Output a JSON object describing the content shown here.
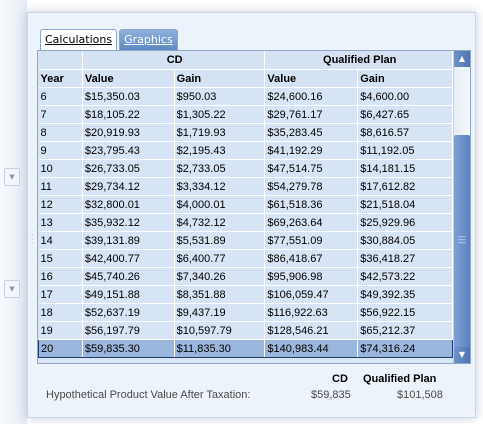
{
  "tabs": [
    {
      "label": "Calculations",
      "active": true
    },
    {
      "label": "Graphics",
      "active": false
    }
  ],
  "grid": {
    "groups": [
      "CD",
      "Qualified Plan"
    ],
    "columns": [
      "Year",
      "Value",
      "Gain",
      "Value",
      "Gain"
    ],
    "rows": [
      [
        "6",
        "$15,350.03",
        "$950.03",
        "$24,600.16",
        "$4,600.00"
      ],
      [
        "7",
        "$18,105.22",
        "$1,305.22",
        "$29,761.17",
        "$6,427.65"
      ],
      [
        "8",
        "$20,919.93",
        "$1,719.93",
        "$35,283.45",
        "$8,616.57"
      ],
      [
        "9",
        "$23,795.43",
        "$2,195.43",
        "$41,192.29",
        "$11,192.05"
      ],
      [
        "10",
        "$26,733.05",
        "$2,733.05",
        "$47,514.75",
        "$14,181.15"
      ],
      [
        "11",
        "$29,734.12",
        "$3,334.12",
        "$54,279.78",
        "$17,612.82"
      ],
      [
        "12",
        "$32,800.01",
        "$4,000.01",
        "$61,518.36",
        "$21,518.04"
      ],
      [
        "13",
        "$35,932.12",
        "$4,732.12",
        "$69,263.64",
        "$25,929.96"
      ],
      [
        "14",
        "$39,131.89",
        "$5,531.89",
        "$77,551.09",
        "$30,884.05"
      ],
      [
        "15",
        "$42,400.77",
        "$6,400.77",
        "$86,418.67",
        "$36,418.27"
      ],
      [
        "16",
        "$45,740.26",
        "$7,340.26",
        "$95,906.98",
        "$42,573.22"
      ],
      [
        "17",
        "$49,151.88",
        "$8,351.88",
        "$106,059.47",
        "$49,392.35"
      ],
      [
        "18",
        "$52,637.19",
        "$9,437.19",
        "$116,922.63",
        "$56,922.15"
      ],
      [
        "19",
        "$56,197.79",
        "$10,597.79",
        "$128,546.21",
        "$65,212.37"
      ],
      [
        "20",
        "$59,835.30",
        "$11,835.30",
        "$140,983.44",
        "$74,316.24"
      ]
    ],
    "selected_year": "20"
  },
  "summary": {
    "cd_header": "CD",
    "qp_header": "Qualified Plan",
    "label": "Hypothetical Product Value After Taxation:",
    "cd_value": "$59,835",
    "qp_value": "$101,508"
  },
  "icons": {
    "scroll_up": "chevron-up-icon",
    "scroll_down": "chevron-down-icon",
    "side_expand": "chevron-down-icon"
  },
  "colors": {
    "tab_inactive": "#6f95cb",
    "grid_row": "#d6e4f5",
    "selected_row": "#9bb6dc",
    "scrollbar": "#5b82bf"
  }
}
